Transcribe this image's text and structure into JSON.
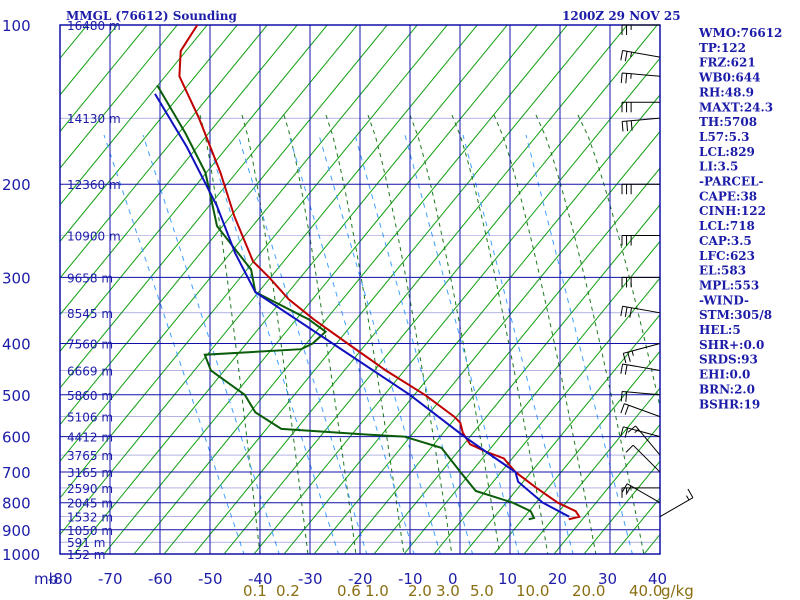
{
  "chart_data": {
    "type": "skew-t",
    "title": "MMGL (76612) Sounding",
    "datetime": "1200Z 29 NOV 25",
    "pressure_unit": "mb",
    "pressure_levels": [
      100,
      200,
      300,
      400,
      500,
      600,
      700,
      800,
      900,
      1000
    ],
    "pressure_range": [
      100,
      1050
    ],
    "temperature_ticks": [
      -80,
      -70,
      -60,
      -50,
      -40,
      -30,
      -20,
      -10,
      0,
      10,
      20,
      30,
      40
    ],
    "temperature_tick_labels": [
      "-80",
      "-70",
      "-60",
      "-50",
      "-40",
      "-30",
      "-20",
      "-10",
      "0",
      "10",
      "20",
      "30",
      "40"
    ],
    "mixing_ratio_labels": [
      "0.1",
      "0.2",
      "0.6",
      "1.0",
      "2.0",
      "3.0",
      "5.0",
      "10.0",
      "20.0",
      "40.0"
    ],
    "mixing_ratio_unit": "g/kg",
    "height_labels": [
      {
        "p": 100,
        "text": "16480 m"
      },
      {
        "p": 150,
        "text": "14130 m"
      },
      {
        "p": 200,
        "text": "12360 m"
      },
      {
        "p": 250,
        "text": "10900 m"
      },
      {
        "p": 300,
        "text": "9658 m"
      },
      {
        "p": 350,
        "text": "8545 m"
      },
      {
        "p": 400,
        "text": "7560 m"
      },
      {
        "p": 450,
        "text": "6669 m"
      },
      {
        "p": 500,
        "text": "5860 m"
      },
      {
        "p": 550,
        "text": "5106 m"
      },
      {
        "p": 600,
        "text": "4412 m"
      },
      {
        "p": 650,
        "text": "3765 m"
      },
      {
        "p": 700,
        "text": "3165 m"
      },
      {
        "p": 750,
        "text": "2590 m"
      },
      {
        "p": 800,
        "text": "2045 m"
      },
      {
        "p": 850,
        "text": "1532 m"
      },
      {
        "p": 900,
        "text": "1050 m"
      },
      {
        "p": 950,
        "text": "591 m"
      },
      {
        "p": 1000,
        "text": "152 m"
      }
    ],
    "series": [
      {
        "name": "Temperature",
        "color": "#c00000",
        "points": [
          [
            100,
            -79
          ],
          [
            112,
            -81
          ],
          [
            125,
            -80
          ],
          [
            150,
            -74
          ],
          [
            190,
            -67
          ],
          [
            230,
            -62
          ],
          [
            280,
            -56
          ],
          [
            300,
            -52
          ],
          [
            330,
            -47
          ],
          [
            360,
            -41
          ],
          [
            400,
            -33
          ],
          [
            450,
            -24
          ],
          [
            500,
            -15
          ],
          [
            550,
            -8
          ],
          [
            565,
            -6.5
          ],
          [
            590,
            -5.5
          ],
          [
            620,
            -3.5
          ],
          [
            640,
            0
          ],
          [
            660,
            4
          ],
          [
            700,
            7
          ],
          [
            750,
            12
          ],
          [
            800,
            17
          ],
          [
            830,
            21
          ],
          [
            850,
            22
          ],
          [
            855,
            21
          ],
          [
            860,
            20
          ]
        ]
      },
      {
        "name": "Dewpoint",
        "color": "#0a5c0a",
        "points": [
          [
            130,
            -84
          ],
          [
            160,
            -76
          ],
          [
            190,
            -70
          ],
          [
            240,
            -65
          ],
          [
            290,
            -56
          ],
          [
            320,
            -54
          ],
          [
            360,
            -42
          ],
          [
            380,
            -38
          ],
          [
            400,
            -40
          ],
          [
            410,
            -42
          ],
          [
            420,
            -61
          ],
          [
            450,
            -59
          ],
          [
            500,
            -51
          ],
          [
            540,
            -48
          ],
          [
            580,
            -42
          ],
          [
            595,
            -24
          ],
          [
            600,
            -17
          ],
          [
            630,
            -9
          ],
          [
            700,
            -4
          ],
          [
            760,
            0
          ],
          [
            800,
            8
          ],
          [
            830,
            12
          ],
          [
            855,
            13
          ],
          [
            860,
            12
          ]
        ]
      },
      {
        "name": "Parcel",
        "color": "#1010c0",
        "points": [
          [
            135,
            -84
          ],
          [
            170,
            -75
          ],
          [
            220,
            -66
          ],
          [
            270,
            -60
          ],
          [
            320,
            -54
          ],
          [
            400,
            -36
          ],
          [
            500,
            -18
          ],
          [
            600,
            -5
          ],
          [
            640,
            0
          ],
          [
            700,
            7
          ],
          [
            730,
            8
          ],
          [
            800,
            14
          ],
          [
            850,
            20
          ]
        ]
      }
    ],
    "wind_barbs": [
      {
        "p": 100,
        "dir": 90,
        "kt": 25
      },
      {
        "p": 115,
        "dir": 100,
        "kt": 25
      },
      {
        "p": 125,
        "dir": 95,
        "kt": 25
      },
      {
        "p": 140,
        "dir": 90,
        "kt": 30
      },
      {
        "p": 150,
        "dir": 85,
        "kt": 30
      },
      {
        "p": 200,
        "dir": 90,
        "kt": 30
      },
      {
        "p": 250,
        "dir": 90,
        "kt": 30
      },
      {
        "p": 300,
        "dir": 90,
        "kt": 30
      },
      {
        "p": 350,
        "dir": 100,
        "kt": 30
      },
      {
        "p": 400,
        "dir": 75,
        "kt": 25
      },
      {
        "p": 450,
        "dir": 100,
        "kt": 20
      },
      {
        "p": 500,
        "dir": 95,
        "kt": 20
      },
      {
        "p": 550,
        "dir": 110,
        "kt": 20
      },
      {
        "p": 600,
        "dir": 105,
        "kt": 20
      },
      {
        "p": 650,
        "dir": 140,
        "kt": 15
      },
      {
        "p": 700,
        "dir": 135,
        "kt": 10
      },
      {
        "p": 750,
        "dir": 90,
        "kt": 15
      },
      {
        "p": 800,
        "dir": 120,
        "kt": 20
      },
      {
        "p": 850,
        "dir": 240,
        "kt": 15
      }
    ],
    "indices": [
      "WMO:76612",
      "TP:122",
      "FRZ:621",
      "WB0:644",
      "RH:48.9",
      "MAXT:24.3",
      "TH:5708",
      "L57:5.3",
      "LCL:829",
      "LI:3.5",
      "-PARCEL-",
      "CAPE:38",
      "CINH:122",
      "LCL:718",
      "CAP:3.5",
      "LFC:623",
      "EL:583",
      "MPL:553",
      "-WIND-",
      "STM:305/8",
      "HEL:5",
      "SHR+:0.0",
      "SRDS:93",
      "EHI:0.0",
      "BRN:2.0",
      "BSHR:19"
    ],
    "colors": {
      "frame": "#1010a8",
      "isotherm": "#1010a8",
      "dry_adiabat": "#10a010",
      "moist_adiabat": "#1a7a1a",
      "mixing_ratio": "#40a0ff",
      "text": "#1c1ca8",
      "mixing_text": "#8a6e12"
    }
  }
}
